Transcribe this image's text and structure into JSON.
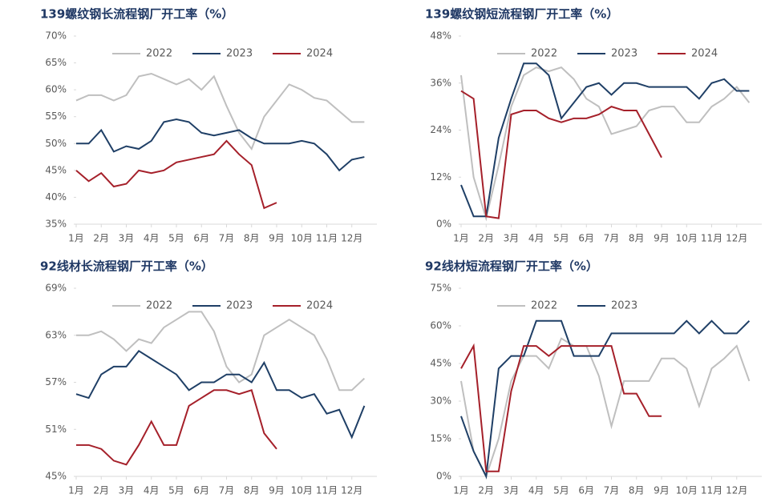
{
  "chart_data": [
    {
      "type": "line",
      "title": "139螺纹钢长流程钢厂开工率（%）",
      "x": [
        1,
        1.5,
        2,
        2.5,
        3,
        3.5,
        4,
        4.5,
        5,
        5.5,
        6,
        6.5,
        7,
        7.5,
        8,
        8.5,
        9,
        9.5,
        10,
        10.5,
        11,
        11.5,
        12,
        12.5
      ],
      "xlim": [
        1,
        13
      ],
      "xticks": [
        {
          "value": 1,
          "label": "1月"
        },
        {
          "value": 2,
          "label": "2月"
        },
        {
          "value": 3,
          "label": "3月"
        },
        {
          "value": 4,
          "label": "4月"
        },
        {
          "value": 5,
          "label": "5月"
        },
        {
          "value": 6,
          "label": "6月"
        },
        {
          "value": 7,
          "label": "7月"
        },
        {
          "value": 8,
          "label": "8月"
        },
        {
          "value": 9,
          "label": "9月"
        },
        {
          "value": 10,
          "label": "10月"
        },
        {
          "value": 11,
          "label": "11月"
        },
        {
          "value": 12,
          "label": "12月"
        }
      ],
      "ylim": [
        35,
        70
      ],
      "yticks": [
        {
          "value": 35,
          "label": "35%"
        },
        {
          "value": 40,
          "label": "40%"
        },
        {
          "value": 45,
          "label": "45%"
        },
        {
          "value": 50,
          "label": "50%"
        },
        {
          "value": 55,
          "label": "55%"
        },
        {
          "value": 60,
          "label": "60%"
        },
        {
          "value": 65,
          "label": "65%"
        },
        {
          "value": 70,
          "label": "70%"
        }
      ],
      "series": [
        {
          "name": "2022",
          "color": "#bfbfbf",
          "values": [
            58,
            59,
            59,
            58,
            59,
            62.5,
            63,
            62,
            61,
            62,
            60,
            62.5,
            57,
            52,
            49,
            55,
            58,
            61,
            60,
            58.5,
            58,
            56,
            54,
            54
          ]
        },
        {
          "name": "2023",
          "color": "#1f3f66",
          "values": [
            50,
            50,
            52.5,
            48.5,
            49.5,
            49,
            50.5,
            54,
            54.5,
            54,
            52,
            51.5,
            52,
            52.5,
            51,
            50,
            50,
            50,
            50.5,
            50,
            48,
            45,
            47,
            47.5
          ]
        },
        {
          "name": "2024",
          "color": "#a5202a",
          "values": [
            45,
            43,
            44.5,
            42,
            42.5,
            45,
            44.5,
            45,
            46.5,
            47,
            47.5,
            48,
            50.5,
            48,
            46,
            38,
            39,
            null,
            null,
            null,
            null,
            null,
            null,
            null
          ]
        }
      ]
    },
    {
      "type": "line",
      "title": "139螺纹钢短流程钢厂开工率（%）",
      "x": [
        1,
        1.5,
        2,
        2.5,
        3,
        3.5,
        4,
        4.5,
        5,
        5.5,
        6,
        6.5,
        7,
        7.5,
        8,
        8.5,
        9,
        9.5,
        10,
        10.5,
        11,
        11.5,
        12,
        12.5
      ],
      "xlim": [
        1,
        13
      ],
      "xticks": [
        {
          "value": 1,
          "label": "1月"
        },
        {
          "value": 2,
          "label": "2月"
        },
        {
          "value": 3,
          "label": "3月"
        },
        {
          "value": 4,
          "label": "4月"
        },
        {
          "value": 5,
          "label": "5月"
        },
        {
          "value": 6,
          "label": "6月"
        },
        {
          "value": 7,
          "label": "7月"
        },
        {
          "value": 8,
          "label": "8月"
        },
        {
          "value": 9,
          "label": "9月"
        },
        {
          "value": 10,
          "label": "10月"
        },
        {
          "value": 11,
          "label": "11月"
        },
        {
          "value": 12,
          "label": "12月"
        }
      ],
      "ylim": [
        0,
        48
      ],
      "yticks": [
        {
          "value": 0,
          "label": "0%"
        },
        {
          "value": 12,
          "label": "12%"
        },
        {
          "value": 24,
          "label": "24%"
        },
        {
          "value": 36,
          "label": "36%"
        },
        {
          "value": 48,
          "label": "48%"
        }
      ],
      "series": [
        {
          "name": "2022",
          "color": "#bfbfbf",
          "values": [
            38,
            12,
            1.5,
            15,
            30,
            38,
            40,
            39,
            40,
            37,
            32,
            30,
            23,
            24,
            25,
            29,
            30,
            30,
            26,
            26,
            30,
            32,
            35,
            31
          ]
        },
        {
          "name": "2023",
          "color": "#1f3f66",
          "values": [
            10,
            2,
            2,
            22,
            32,
            41,
            41,
            38,
            27,
            31,
            35,
            36,
            33,
            36,
            36,
            35,
            35,
            35,
            35,
            32,
            36,
            37,
            34,
            34
          ]
        },
        {
          "name": "2024",
          "color": "#a5202a",
          "values": [
            34,
            32,
            2,
            1.5,
            28,
            29,
            29,
            27,
            26,
            27,
            27,
            28,
            30,
            29,
            29,
            23,
            17,
            null,
            null,
            null,
            null,
            null,
            null,
            null
          ]
        }
      ]
    },
    {
      "type": "line",
      "title": "92线材长流程钢厂开工率（%）",
      "x": [
        1,
        1.5,
        2,
        2.5,
        3,
        3.5,
        4,
        4.5,
        5,
        5.5,
        6,
        6.5,
        7,
        7.5,
        8,
        8.5,
        9,
        9.5,
        10,
        10.5,
        11,
        11.5,
        12,
        12.5
      ],
      "xlim": [
        1,
        13
      ],
      "xticks": [
        {
          "value": 1,
          "label": "1月"
        },
        {
          "value": 2,
          "label": "2月"
        },
        {
          "value": 3,
          "label": "3月"
        },
        {
          "value": 4,
          "label": "4月"
        },
        {
          "value": 5,
          "label": "5月"
        },
        {
          "value": 6,
          "label": "6月"
        },
        {
          "value": 7,
          "label": "7月"
        },
        {
          "value": 8,
          "label": "8月"
        },
        {
          "value": 9,
          "label": "9月"
        },
        {
          "value": 10,
          "label": "10月"
        },
        {
          "value": 11,
          "label": "11月"
        },
        {
          "value": 12,
          "label": "12月"
        }
      ],
      "ylim": [
        45,
        69
      ],
      "yticks": [
        {
          "value": 45,
          "label": "45%"
        },
        {
          "value": 51,
          "label": "51%"
        },
        {
          "value": 57,
          "label": "57%"
        },
        {
          "value": 63,
          "label": "63%"
        },
        {
          "value": 69,
          "label": "69%"
        }
      ],
      "series": [
        {
          "name": "2022",
          "color": "#bfbfbf",
          "values": [
            63,
            63,
            63.5,
            62.5,
            61,
            62.5,
            62,
            64,
            65,
            66,
            66,
            63.5,
            59,
            57,
            58,
            63,
            64,
            65,
            64,
            63,
            60,
            56,
            56,
            57.5
          ]
        },
        {
          "name": "2023",
          "color": "#1f3f66",
          "values": [
            55.5,
            55,
            58,
            59,
            59,
            61,
            60,
            59,
            58,
            56,
            57,
            57,
            58,
            58,
            57,
            59.5,
            56,
            56,
            55,
            55.5,
            53,
            53.5,
            50,
            54
          ]
        },
        {
          "name": "2024",
          "color": "#a5202a",
          "values": [
            49,
            49,
            48.5,
            47,
            46.5,
            49,
            52,
            49,
            49,
            54,
            55,
            56,
            56,
            55.5,
            56,
            50.5,
            48.5,
            null,
            null,
            null,
            null,
            null,
            null,
            null
          ]
        }
      ]
    },
    {
      "type": "line",
      "title": "92线材短流程钢厂开工率（%）",
      "x": [
        1,
        1.5,
        2,
        2.5,
        3,
        3.5,
        4,
        4.5,
        5,
        5.5,
        6,
        6.5,
        7,
        7.5,
        8,
        8.5,
        9,
        9.5,
        10,
        10.5,
        11,
        11.5,
        12,
        12.5
      ],
      "xlim": [
        1,
        13
      ],
      "xticks": [
        {
          "value": 1,
          "label": "1月"
        },
        {
          "value": 2,
          "label": "2月"
        },
        {
          "value": 3,
          "label": "3月"
        },
        {
          "value": 4,
          "label": "4月"
        },
        {
          "value": 5,
          "label": "5月"
        },
        {
          "value": 6,
          "label": "6月"
        },
        {
          "value": 7,
          "label": "7月"
        },
        {
          "value": 8,
          "label": "8月"
        },
        {
          "value": 9,
          "label": "9月"
        },
        {
          "value": 10,
          "label": "10月"
        },
        {
          "value": 11,
          "label": "11月"
        },
        {
          "value": 12,
          "label": "12月"
        }
      ],
      "ylim": [
        0,
        75
      ],
      "yticks": [
        {
          "value": 0,
          "label": "0%"
        },
        {
          "value": 15,
          "label": "15%"
        },
        {
          "value": 30,
          "label": "30%"
        },
        {
          "value": 45,
          "label": "45%"
        },
        {
          "value": 60,
          "label": "60%"
        },
        {
          "value": 75,
          "label": "75%"
        }
      ],
      "series": [
        {
          "name": "2022",
          "color": "#bfbfbf",
          "values": [
            38,
            10,
            0,
            15,
            38,
            48,
            48,
            43,
            55,
            52,
            52,
            40,
            20,
            38,
            38,
            38,
            47,
            47,
            43,
            28,
            43,
            47,
            52,
            38
          ]
        },
        {
          "name": "2023",
          "color": "#1f3f66",
          "values": [
            24,
            10,
            0,
            43,
            48,
            48,
            62,
            62,
            62,
            48,
            48,
            48,
            57,
            57,
            57,
            57,
            57,
            57,
            62,
            57,
            62,
            57,
            57,
            62
          ]
        },
        {
          "color": "#a5202a",
          "values": [
            43,
            52,
            2,
            2,
            34,
            52,
            52,
            48,
            52,
            52,
            52,
            52,
            52,
            33,
            33,
            24,
            24,
            null,
            null,
            null,
            null,
            null,
            null,
            null
          ]
        }
      ]
    }
  ]
}
